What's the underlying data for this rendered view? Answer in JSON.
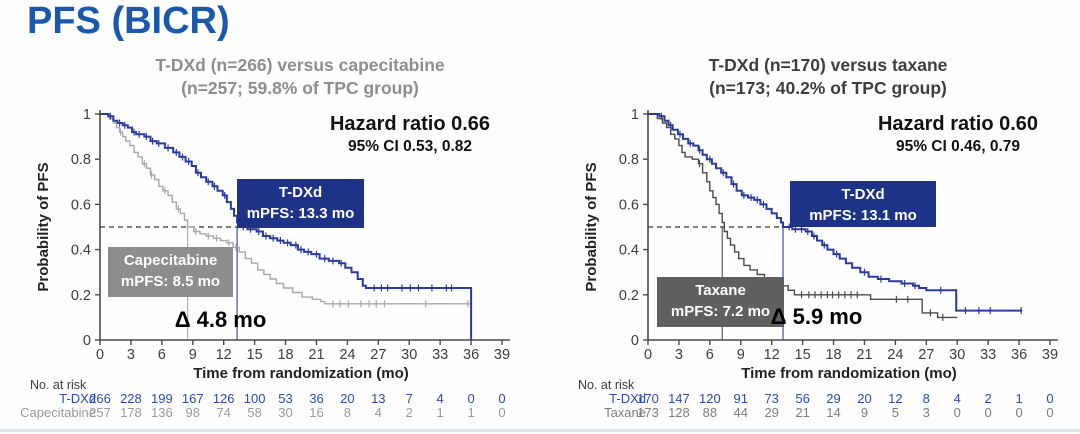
{
  "page": {
    "title": "PFS (BICR)"
  },
  "colors": {
    "title_blue": "#1b58ab",
    "navy_curve": "#2b3b9c",
    "navy_box": "#1e3287",
    "cape_curve": "#a8a8a8",
    "cape_box": "#8d8d8d",
    "taxane_curve": "#4b4b4b",
    "taxane_box": "#606060",
    "divider": "#dde4eb"
  },
  "chart_data": [
    {
      "type": "line",
      "subtype": "kaplan-meier",
      "title_line1": "T-DXd (n=266) versus capecitabine",
      "title_line2": "(n=257; 59.8% of TPC group)",
      "title_color": "#8d8d8d",
      "hazard_ratio": "Hazard ratio 0.66",
      "ci": "95% CI 0.53, 0.82",
      "xlabel": "Time from randomization (mo)",
      "ylabel": "Probability of PFS",
      "xlim": [
        0,
        39
      ],
      "ylim": [
        0,
        1
      ],
      "xticks": [
        0,
        3,
        6,
        9,
        12,
        15,
        18,
        21,
        24,
        27,
        30,
        33,
        36,
        39
      ],
      "yticks": [
        "1",
        "0.8",
        "0.6",
        "0.4",
        "0.2",
        "0"
      ],
      "grid": false,
      "reference_line_y": 0.5,
      "delta_label": "Δ 4.8 mo",
      "risk_header": "No. at risk",
      "series": [
        {
          "name": "T-DXd",
          "color": "#2b3b9c",
          "box_color": "#1e3287",
          "box_line1": "T-DXd",
          "box_line2": "mPFS: 13.3 mo",
          "median": 13.3,
          "risk_color": "#2d4ba3",
          "risk": [
            266,
            228,
            199,
            167,
            126,
            100,
            53,
            36,
            20,
            13,
            7,
            4,
            0,
            0
          ],
          "steps": [
            [
              0,
              1
            ],
            [
              0.8,
              0.99
            ],
            [
              1.3,
              0.97
            ],
            [
              1.7,
              0.96
            ],
            [
              2.2,
              0.95
            ],
            [
              2.7,
              0.94
            ],
            [
              3.1,
              0.92
            ],
            [
              3.5,
              0.91
            ],
            [
              4.3,
              0.9
            ],
            [
              4.9,
              0.88
            ],
            [
              5.5,
              0.87
            ],
            [
              6.3,
              0.85
            ],
            [
              7.1,
              0.83
            ],
            [
              7.7,
              0.81
            ],
            [
              8.3,
              0.79
            ],
            [
              8.9,
              0.77
            ],
            [
              9.3,
              0.74
            ],
            [
              9.8,
              0.72
            ],
            [
              10.3,
              0.7
            ],
            [
              10.9,
              0.68
            ],
            [
              11.4,
              0.66
            ],
            [
              11.9,
              0.64
            ],
            [
              12.3,
              0.61
            ],
            [
              12.7,
              0.58
            ],
            [
              13.0,
              0.55
            ],
            [
              13.3,
              0.52
            ],
            [
              13.5,
              0.5
            ],
            [
              14.3,
              0.49
            ],
            [
              15.2,
              0.48
            ],
            [
              15.8,
              0.46
            ],
            [
              16.5,
              0.45
            ],
            [
              17.2,
              0.44
            ],
            [
              17.8,
              0.43
            ],
            [
              18.5,
              0.42
            ],
            [
              19.2,
              0.4
            ],
            [
              19.8,
              0.39
            ],
            [
              20.5,
              0.38
            ],
            [
              21.3,
              0.36
            ],
            [
              22.2,
              0.35
            ],
            [
              23.2,
              0.34
            ],
            [
              23.8,
              0.32
            ],
            [
              24.4,
              0.3
            ],
            [
              25.0,
              0.27
            ],
            [
              25.5,
              0.24
            ],
            [
              25.8,
              0.23
            ],
            [
              35.9,
              0.23
            ],
            [
              36,
              0
            ]
          ],
          "censors": [
            1.0,
            1.9,
            2.4,
            3.3,
            3.8,
            4.5,
            5.1,
            5.7,
            6.6,
            7.4,
            8.0,
            8.6,
            9.5,
            10.5,
            11.1,
            12.1,
            13.9,
            14.6,
            15.4,
            16.1,
            16.8,
            17.5,
            18.2,
            19.0,
            19.5,
            20.2,
            21.0,
            21.8,
            22.6,
            23.4,
            26.6,
            27.3,
            27.9,
            29.3,
            30.1,
            30.9,
            32.2,
            33.6,
            34.1
          ]
        },
        {
          "name": "Capecitabine",
          "color": "#a8a8a8",
          "box_color": "#8d8d8d",
          "box_line1": "Capecitabine",
          "box_line2": "mPFS: 8.5 mo",
          "median": 8.5,
          "risk_color": "#999999",
          "risk": [
            257,
            178,
            136,
            98,
            74,
            58,
            30,
            16,
            8,
            4,
            2,
            1,
            1,
            0
          ],
          "steps": [
            [
              0,
              1
            ],
            [
              0.9,
              0.98
            ],
            [
              1.3,
              0.96
            ],
            [
              1.6,
              0.94
            ],
            [
              1.9,
              0.92
            ],
            [
              2.2,
              0.9
            ],
            [
              2.5,
              0.88
            ],
            [
              2.9,
              0.86
            ],
            [
              3.3,
              0.83
            ],
            [
              3.7,
              0.81
            ],
            [
              4.1,
              0.78
            ],
            [
              4.5,
              0.76
            ],
            [
              4.9,
              0.73
            ],
            [
              5.3,
              0.71
            ],
            [
              5.7,
              0.68
            ],
            [
              6.1,
              0.66
            ],
            [
              6.6,
              0.64
            ],
            [
              7.0,
              0.61
            ],
            [
              7.4,
              0.58
            ],
            [
              7.8,
              0.56
            ],
            [
              8.2,
              0.53
            ],
            [
              8.5,
              0.5
            ],
            [
              9.1,
              0.48
            ],
            [
              9.7,
              0.47
            ],
            [
              10.3,
              0.46
            ],
            [
              11.0,
              0.45
            ],
            [
              11.7,
              0.44
            ],
            [
              12.3,
              0.43
            ],
            [
              12.9,
              0.41
            ],
            [
              13.5,
              0.39
            ],
            [
              14.1,
              0.36
            ],
            [
              14.7,
              0.34
            ],
            [
              15.3,
              0.31
            ],
            [
              15.9,
              0.29
            ],
            [
              16.5,
              0.27
            ],
            [
              17.1,
              0.25
            ],
            [
              17.8,
              0.23
            ],
            [
              18.7,
              0.21
            ],
            [
              19.6,
              0.19
            ],
            [
              20.6,
              0.18
            ],
            [
              21.4,
              0.17
            ],
            [
              21.8,
              0.16
            ],
            [
              36,
              0.16
            ]
          ],
          "censors": [
            2.0,
            4.3,
            5.0,
            6.3,
            7.6,
            9.3,
            10.5,
            11.3,
            12.5,
            13.2,
            22.6,
            23.3,
            24.1,
            25.3,
            26.1,
            26.8,
            27.6,
            31.6,
            35.7
          ]
        }
      ]
    },
    {
      "type": "line",
      "subtype": "kaplan-meier",
      "title_line1": "T-DXd (n=170) versus taxane",
      "title_line2": "(n=173; 40.2% of TPC group)",
      "title_color": "#3e3e3e",
      "hazard_ratio": "Hazard ratio 0.60",
      "ci": "95% CI 0.46, 0.79",
      "xlabel": "Time from randomization (mo)",
      "ylabel": "Probability of PFS",
      "xlim": [
        0,
        39
      ],
      "ylim": [
        0,
        1
      ],
      "xticks": [
        0,
        3,
        6,
        9,
        12,
        15,
        18,
        21,
        24,
        27,
        30,
        33,
        36,
        39
      ],
      "yticks": [
        "1",
        "0.8",
        "0.6",
        "0.4",
        "0.2",
        "0"
      ],
      "grid": false,
      "reference_line_y": 0.5,
      "delta_label": "Δ 5.9 mo",
      "risk_header": "No. at risk",
      "series": [
        {
          "name": "T-DXd",
          "color": "#2b3b9c",
          "box_color": "#1e3287",
          "box_line1": "T-DXd",
          "box_line2": "mPFS: 13.1 mo",
          "median": 13.1,
          "risk_color": "#2d4ba3",
          "risk": [
            170,
            147,
            120,
            91,
            73,
            56,
            29,
            20,
            12,
            8,
            4,
            2,
            1,
            0
          ],
          "steps": [
            [
              0,
              1
            ],
            [
              1.1,
              0.99
            ],
            [
              1.6,
              0.97
            ],
            [
              2.0,
              0.95
            ],
            [
              2.4,
              0.93
            ],
            [
              2.9,
              0.91
            ],
            [
              3.4,
              0.89
            ],
            [
              3.9,
              0.87
            ],
            [
              4.4,
              0.86
            ],
            [
              4.9,
              0.84
            ],
            [
              5.3,
              0.82
            ],
            [
              5.7,
              0.8
            ],
            [
              6.2,
              0.78
            ],
            [
              6.6,
              0.76
            ],
            [
              7.1,
              0.74
            ],
            [
              7.6,
              0.72
            ],
            [
              8.1,
              0.69
            ],
            [
              8.6,
              0.66
            ],
            [
              9.1,
              0.64
            ],
            [
              9.7,
              0.63
            ],
            [
              10.3,
              0.62
            ],
            [
              10.9,
              0.6
            ],
            [
              11.5,
              0.58
            ],
            [
              12.0,
              0.56
            ],
            [
              12.5,
              0.54
            ],
            [
              12.9,
              0.52
            ],
            [
              13.1,
              0.5
            ],
            [
              14.0,
              0.49
            ],
            [
              15.3,
              0.48
            ],
            [
              15.9,
              0.46
            ],
            [
              16.4,
              0.44
            ],
            [
              16.9,
              0.42
            ],
            [
              17.4,
              0.4
            ],
            [
              18.0,
              0.38
            ],
            [
              18.6,
              0.36
            ],
            [
              19.2,
              0.34
            ],
            [
              19.8,
              0.32
            ],
            [
              20.6,
              0.3
            ],
            [
              21.4,
              0.28
            ],
            [
              22.3,
              0.27
            ],
            [
              23.4,
              0.26
            ],
            [
              24.6,
              0.25
            ],
            [
              25.7,
              0.24
            ],
            [
              26.3,
              0.23
            ],
            [
              27.0,
              0.22
            ],
            [
              29.9,
              0.13
            ],
            [
              36.3,
              0.13
            ]
          ],
          "censors": [
            1.3,
            2.2,
            3.1,
            4.1,
            5.0,
            6.0,
            7.3,
            8.3,
            9.3,
            10.0,
            10.6,
            11.2,
            13.7,
            14.3,
            14.9,
            15.5,
            16.1,
            17.1,
            18.3,
            21.0,
            22.6,
            24.9,
            25.9,
            28.4,
            30.8,
            32.1,
            33.2,
            36.2
          ]
        },
        {
          "name": "Taxane",
          "color": "#4b4b4b",
          "box_color": "#606060",
          "box_line1": "Taxane",
          "box_line2": "mPFS: 7.2 mo",
          "median": 7.2,
          "risk_color": "#7d7d7d",
          "risk": [
            173,
            128,
            88,
            44,
            29,
            21,
            14,
            9,
            5,
            3,
            0,
            0,
            0,
            0
          ],
          "steps": [
            [
              0,
              1
            ],
            [
              0.9,
              0.98
            ],
            [
              1.4,
              0.96
            ],
            [
              1.8,
              0.94
            ],
            [
              2.2,
              0.91
            ],
            [
              2.6,
              0.89
            ],
            [
              3.0,
              0.86
            ],
            [
              3.3,
              0.83
            ],
            [
              3.6,
              0.81
            ],
            [
              4.3,
              0.8
            ],
            [
              4.9,
              0.78
            ],
            [
              5.3,
              0.74
            ],
            [
              5.7,
              0.7
            ],
            [
              6.0,
              0.66
            ],
            [
              6.3,
              0.63
            ],
            [
              6.6,
              0.6
            ],
            [
              6.9,
              0.56
            ],
            [
              7.2,
              0.52
            ],
            [
              7.4,
              0.48
            ],
            [
              7.7,
              0.45
            ],
            [
              8.0,
              0.42
            ],
            [
              8.4,
              0.39
            ],
            [
              8.8,
              0.36
            ],
            [
              9.3,
              0.33
            ],
            [
              9.9,
              0.31
            ],
            [
              10.6,
              0.29
            ],
            [
              11.3,
              0.27
            ],
            [
              12.1,
              0.26
            ],
            [
              12.9,
              0.24
            ],
            [
              13.6,
              0.22
            ],
            [
              14.2,
              0.2
            ],
            [
              21.6,
              0.18
            ],
            [
              26.6,
              0.12
            ],
            [
              28.1,
              0.1
            ],
            [
              30,
              0.1
            ]
          ],
          "censors": [
            5.0,
            14.9,
            15.6,
            16.2,
            16.8,
            17.4,
            17.9,
            18.5,
            19.1,
            19.7,
            20.3,
            24.1,
            25.2,
            27.4,
            28.6
          ]
        }
      ]
    }
  ]
}
